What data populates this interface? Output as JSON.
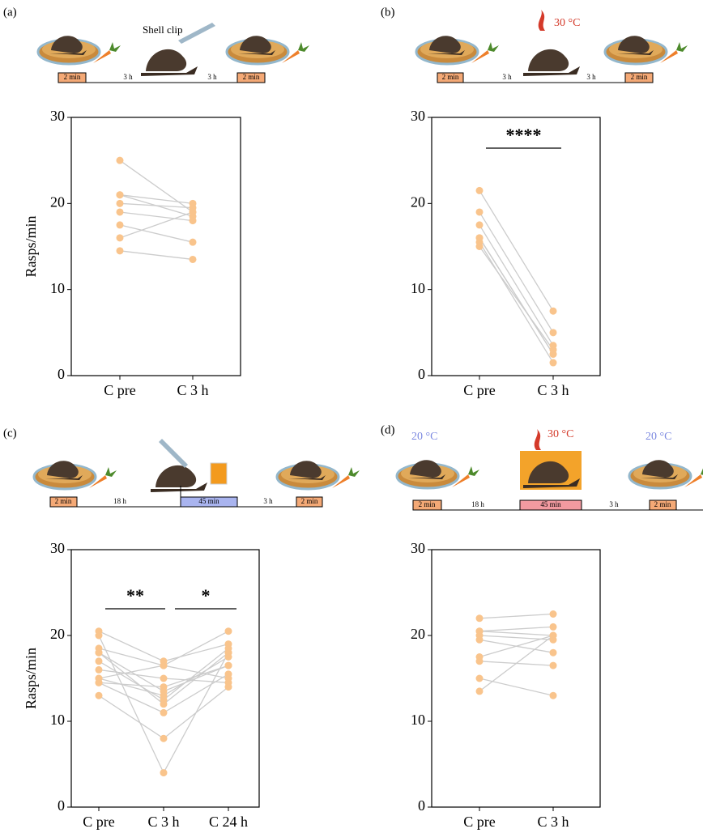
{
  "chart_data": [
    {
      "type": "paired",
      "panel_label": "(a)",
      "ylabel": "Rasps/min",
      "categories": [
        "C pre",
        "C 3 h"
      ],
      "ylim": [
        0,
        30
      ],
      "yticks": [
        0,
        10,
        20,
        30
      ],
      "color": "#f9c48c",
      "line_color": "#cccccc",
      "schematic": {
        "labels": [
          "Shell clip",
          "2 min",
          "3 h",
          "3 h",
          "2 min"
        ]
      },
      "series": [
        {
          "values": [
            25,
            19
          ]
        },
        {
          "values": [
            21,
            18.5
          ]
        },
        {
          "values": [
            21,
            20
          ]
        },
        {
          "values": [
            20,
            19.5
          ]
        },
        {
          "values": [
            19,
            18
          ]
        },
        {
          "values": [
            17.5,
            15.5
          ]
        },
        {
          "values": [
            16,
            19
          ]
        },
        {
          "values": [
            14.5,
            13.5
          ]
        }
      ],
      "significance": []
    },
    {
      "type": "paired",
      "panel_label": "(b)",
      "categories": [
        "C pre",
        "C 3 h"
      ],
      "ylim": [
        0,
        30
      ],
      "yticks": [
        0,
        10,
        20,
        30
      ],
      "color": "#f9c48c",
      "line_color": "#cccccc",
      "schematic": {
        "labels": [
          "30 °C",
          "2 min",
          "3 h",
          "3 h",
          "2 min"
        ]
      },
      "series": [
        {
          "values": [
            21.5,
            7.5
          ]
        },
        {
          "values": [
            19,
            5
          ]
        },
        {
          "values": [
            17.5,
            3.5
          ]
        },
        {
          "values": [
            16,
            2.5
          ]
        },
        {
          "values": [
            15,
            3
          ]
        },
        {
          "values": [
            15.5,
            1.5
          ]
        },
        {
          "values": [
            16,
            2.5
          ]
        }
      ],
      "significance": [
        {
          "from": 0,
          "to": 1,
          "text": "****"
        }
      ]
    },
    {
      "type": "paired",
      "panel_label": "(c)",
      "ylabel": "Rasps/min",
      "categories": [
        "C pre",
        "C 3 h",
        "C 24 h"
      ],
      "ylim": [
        0,
        30
      ],
      "yticks": [
        0,
        10,
        20,
        30
      ],
      "color": "#f9c48c",
      "line_color": "#cccccc",
      "schematic": {
        "labels": [
          "2 min",
          "18 h",
          "45 min",
          "3 h",
          "2 min"
        ]
      },
      "series": [
        {
          "values": [
            20.5,
            17,
            19
          ]
        },
        {
          "values": [
            20,
            4,
            18
          ]
        },
        {
          "values": [
            18.5,
            16.5,
            20.5
          ]
        },
        {
          "values": [
            18,
            13.5,
            16.5
          ]
        },
        {
          "values": [
            17,
            12.5,
            18.5
          ]
        },
        {
          "values": [
            16,
            15,
            14.5
          ]
        },
        {
          "values": [
            15,
            13,
            17.5
          ]
        },
        {
          "values": [
            14.5,
            11,
            15.5
          ]
        },
        {
          "values": [
            13,
            8,
            14
          ]
        },
        {
          "values": [
            14.5,
            14,
            16.5
          ]
        },
        {
          "values": [
            18,
            12,
            18
          ]
        },
        {
          "values": [
            15,
            16.5,
            15
          ]
        }
      ],
      "significance": [
        {
          "from": 0,
          "to": 1,
          "text": "**"
        },
        {
          "from": 1,
          "to": 2,
          "text": "*"
        }
      ]
    },
    {
      "type": "paired",
      "panel_label": "(d)",
      "categories": [
        "C pre",
        "C 3 h"
      ],
      "ylim": [
        0,
        30
      ],
      "yticks": [
        0,
        10,
        20,
        30
      ],
      "color": "#f9c48c",
      "line_color": "#cccccc",
      "schematic": {
        "labels": [
          "20 °C",
          "30 °C",
          "20 °C",
          "2 min",
          "18 h",
          "45 min",
          "3 h",
          "2 min"
        ]
      },
      "series": [
        {
          "values": [
            22,
            22.5
          ]
        },
        {
          "values": [
            20.5,
            21
          ]
        },
        {
          "values": [
            20,
            19.5
          ]
        },
        {
          "values": [
            19.5,
            18
          ]
        },
        {
          "values": [
            17.5,
            20
          ]
        },
        {
          "values": [
            17,
            16.5
          ]
        },
        {
          "values": [
            15,
            13
          ]
        },
        {
          "values": [
            13.5,
            20
          ]
        },
        {
          "values": [
            20.5,
            20
          ]
        }
      ],
      "significance": []
    }
  ]
}
